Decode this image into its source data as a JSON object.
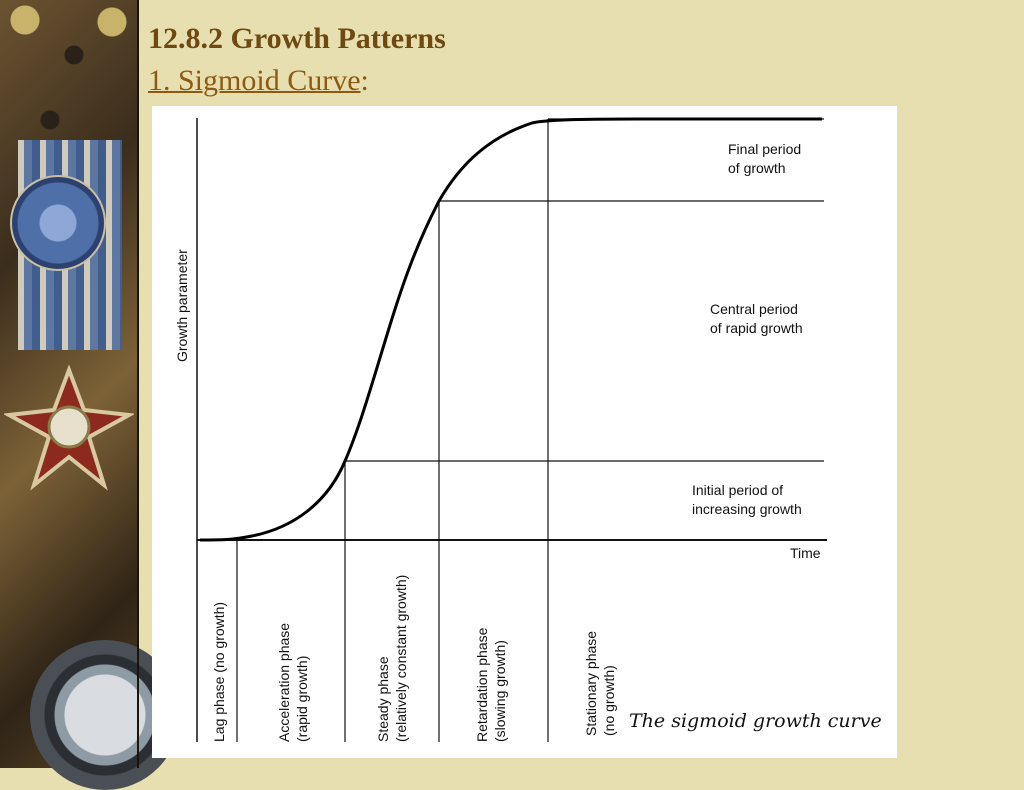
{
  "slide": {
    "title": "12.8.2 Growth Patterns",
    "subtitle_link": "1. Sigmoid Curve",
    "subtitle_suffix": ":"
  },
  "diagram": {
    "y_axis_label": "Growth parameter",
    "x_axis_label": "Time",
    "caption": "The sigmoid growth curve",
    "periods": [
      {
        "line1": "Final period",
        "line2": "of growth"
      },
      {
        "line1": "Central period",
        "line2": "of rapid growth"
      },
      {
        "line1": "Initial period of",
        "line2": "increasing growth"
      }
    ],
    "phases": [
      {
        "line1": "Lag phase (no growth)",
        "line2": ""
      },
      {
        "line1": "Acceleration phase",
        "line2": "(rapid growth)"
      },
      {
        "line1": "Steady phase",
        "line2": "(relatively constant growth)"
      },
      {
        "line1": "Retardation phase",
        "line2": "(slowing growth)"
      },
      {
        "line1": "Stationary phase",
        "line2": "(no growth)"
      }
    ]
  },
  "decoration": {
    "left_strip": "medal-and-compass-photo"
  }
}
